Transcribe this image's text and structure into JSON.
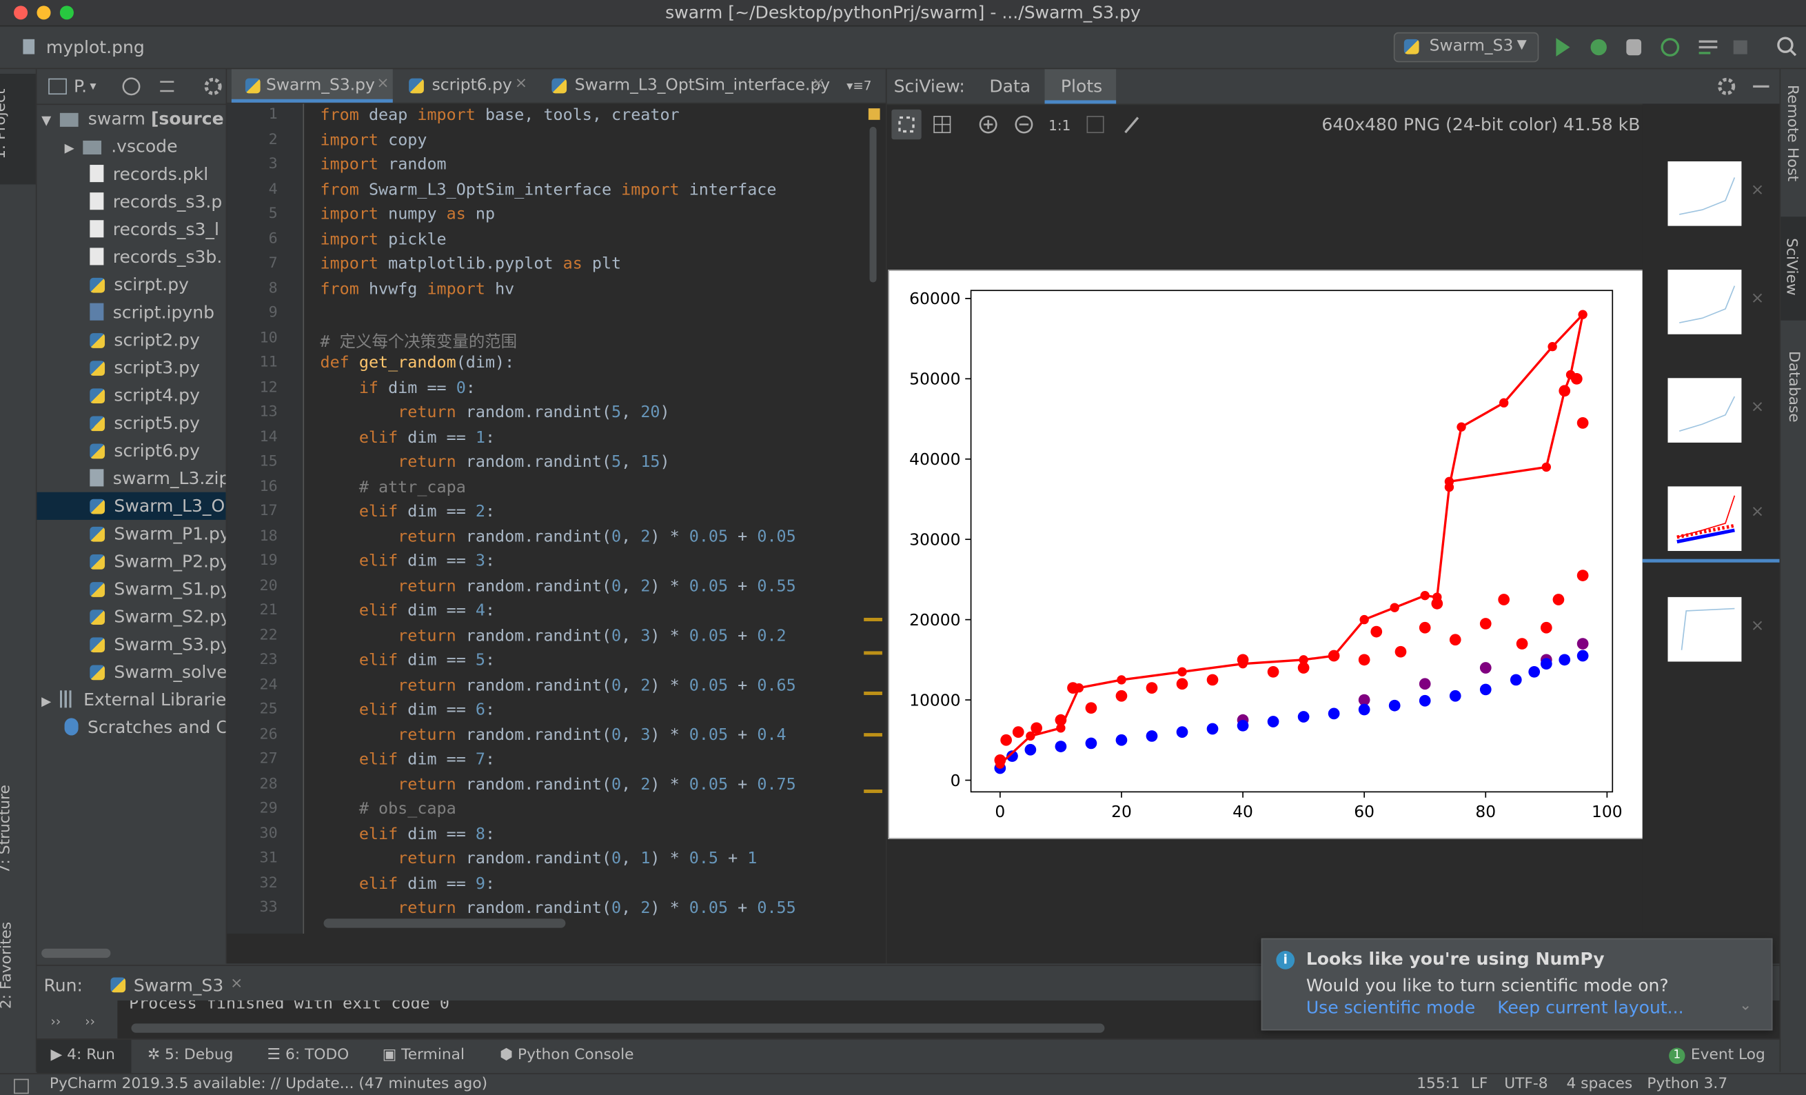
{
  "window": {
    "title": "swarm [~/Desktop/pythonPrj/swarm] - .../Swarm_S3.py"
  },
  "navbar": {
    "file": "myplot.png",
    "run_config": "Swarm_S3"
  },
  "left_strip": [
    "1: Project",
    "7: Structure",
    "2: Favorites"
  ],
  "right_strip": [
    "Remote Host",
    "SciView",
    "Database"
  ],
  "project": {
    "header": "P.",
    "root": "swarm",
    "root_suffix": "[source",
    "items": [
      ".vscode",
      "records.pkl",
      "records_s3.p",
      "records_s3_l",
      "records_s3b.",
      "scirpt.py",
      "script.ipynb",
      "script2.py",
      "script3.py",
      "script4.py",
      "script5.py",
      "script6.py",
      "swarm_L3.zip",
      "Swarm_L3_O",
      "Swarm_P1.py",
      "Swarm_P2.py",
      "Swarm_S1.py",
      "Swarm_S2.py",
      "Swarm_S3.py",
      "Swarm_solve",
      "External Librarie",
      "Scratches and C"
    ]
  },
  "editor": {
    "tabs": [
      "Swarm_S3.py",
      "script6.py",
      "Swarm_L3_OptSim_interface.py"
    ],
    "hidden_tabs": "7",
    "lines": [
      {
        "no": 1,
        "segs": [
          {
            "t": "from",
            "c": "#cc7832"
          },
          {
            "t": " deap "
          },
          {
            "t": "import",
            "c": "#cc7832"
          },
          {
            "t": " base, tools, creator"
          }
        ]
      },
      {
        "no": 2,
        "segs": [
          {
            "t": "import",
            "c": "#cc7832"
          },
          {
            "t": " copy"
          }
        ]
      },
      {
        "no": 3,
        "segs": [
          {
            "t": "import",
            "c": "#cc7832"
          },
          {
            "t": " random"
          }
        ]
      },
      {
        "no": 4,
        "segs": [
          {
            "t": "from",
            "c": "#cc7832"
          },
          {
            "t": " Swarm_L3_OptSim_interface "
          },
          {
            "t": "import",
            "c": "#cc7832"
          },
          {
            "t": " interface"
          }
        ]
      },
      {
        "no": 5,
        "segs": [
          {
            "t": "import",
            "c": "#cc7832"
          },
          {
            "t": " numpy "
          },
          {
            "t": "as",
            "c": "#cc7832"
          },
          {
            "t": " np"
          }
        ]
      },
      {
        "no": 6,
        "segs": [
          {
            "t": "import",
            "c": "#cc7832"
          },
          {
            "t": " pickle"
          }
        ]
      },
      {
        "no": 7,
        "segs": [
          {
            "t": "import",
            "c": "#cc7832"
          },
          {
            "t": " matplotlib.pyplot "
          },
          {
            "t": "as",
            "c": "#cc7832"
          },
          {
            "t": " plt"
          }
        ]
      },
      {
        "no": 8,
        "segs": [
          {
            "t": "from",
            "c": "#cc7832"
          },
          {
            "t": " hvwfg "
          },
          {
            "t": "import",
            "c": "#cc7832"
          },
          {
            "t": " hv"
          }
        ]
      },
      {
        "no": 9,
        "segs": []
      },
      {
        "no": 10,
        "segs": [
          {
            "t": "# 定义每个决策变量的范围",
            "c": "#808080"
          }
        ]
      },
      {
        "no": 11,
        "segs": [
          {
            "t": "def ",
            "c": "#cc7832"
          },
          {
            "t": "get_random",
            "c": "#ffc66d"
          },
          {
            "t": "(dim):"
          }
        ]
      },
      {
        "no": 12,
        "segs": [
          {
            "t": "    if",
            "c": "#cc7832"
          },
          {
            "t": " dim == "
          },
          {
            "t": "0",
            "c": "#6897bb"
          },
          {
            "t": ":"
          }
        ]
      },
      {
        "no": 13,
        "segs": [
          {
            "t": "        return",
            "c": "#cc7832"
          },
          {
            "t": " random.randint("
          },
          {
            "t": "5",
            "c": "#6897bb"
          },
          {
            "t": ", "
          },
          {
            "t": "20",
            "c": "#6897bb"
          },
          {
            "t": ")"
          }
        ]
      },
      {
        "no": 14,
        "segs": [
          {
            "t": "    elif",
            "c": "#cc7832"
          },
          {
            "t": " dim == "
          },
          {
            "t": "1",
            "c": "#6897bb"
          },
          {
            "t": ":"
          }
        ]
      },
      {
        "no": 15,
        "segs": [
          {
            "t": "        return",
            "c": "#cc7832"
          },
          {
            "t": " random.randint("
          },
          {
            "t": "5",
            "c": "#6897bb"
          },
          {
            "t": ", "
          },
          {
            "t": "15",
            "c": "#6897bb"
          },
          {
            "t": ")"
          }
        ]
      },
      {
        "no": 16,
        "segs": [
          {
            "t": "    # attr_capa",
            "c": "#808080"
          }
        ]
      },
      {
        "no": 17,
        "segs": [
          {
            "t": "    elif",
            "c": "#cc7832"
          },
          {
            "t": " dim == "
          },
          {
            "t": "2",
            "c": "#6897bb"
          },
          {
            "t": ":"
          }
        ]
      },
      {
        "no": 18,
        "segs": [
          {
            "t": "        return",
            "c": "#cc7832"
          },
          {
            "t": " random.randint("
          },
          {
            "t": "0",
            "c": "#6897bb"
          },
          {
            "t": ", "
          },
          {
            "t": "2",
            "c": "#6897bb"
          },
          {
            "t": ") * "
          },
          {
            "t": "0.05",
            "c": "#6897bb"
          },
          {
            "t": " + "
          },
          {
            "t": "0.05",
            "c": "#6897bb"
          }
        ]
      },
      {
        "no": 19,
        "segs": [
          {
            "t": "    elif",
            "c": "#cc7832"
          },
          {
            "t": " dim == "
          },
          {
            "t": "3",
            "c": "#6897bb"
          },
          {
            "t": ":"
          }
        ]
      },
      {
        "no": 20,
        "segs": [
          {
            "t": "        return",
            "c": "#cc7832"
          },
          {
            "t": " random.randint("
          },
          {
            "t": "0",
            "c": "#6897bb"
          },
          {
            "t": ", "
          },
          {
            "t": "2",
            "c": "#6897bb"
          },
          {
            "t": ") * "
          },
          {
            "t": "0.05",
            "c": "#6897bb"
          },
          {
            "t": " + "
          },
          {
            "t": "0.55",
            "c": "#6897bb"
          }
        ]
      },
      {
        "no": 21,
        "segs": [
          {
            "t": "    elif",
            "c": "#cc7832"
          },
          {
            "t": " dim == "
          },
          {
            "t": "4",
            "c": "#6897bb"
          },
          {
            "t": ":"
          }
        ]
      },
      {
        "no": 22,
        "segs": [
          {
            "t": "        return",
            "c": "#cc7832"
          },
          {
            "t": " random.randint("
          },
          {
            "t": "0",
            "c": "#6897bb"
          },
          {
            "t": ", "
          },
          {
            "t": "3",
            "c": "#6897bb"
          },
          {
            "t": ") * "
          },
          {
            "t": "0.05",
            "c": "#6897bb"
          },
          {
            "t": " + "
          },
          {
            "t": "0.2",
            "c": "#6897bb"
          }
        ]
      },
      {
        "no": 23,
        "segs": [
          {
            "t": "    elif",
            "c": "#cc7832"
          },
          {
            "t": " dim == "
          },
          {
            "t": "5",
            "c": "#6897bb"
          },
          {
            "t": ":"
          }
        ]
      },
      {
        "no": 24,
        "segs": [
          {
            "t": "        return",
            "c": "#cc7832"
          },
          {
            "t": " random.randint("
          },
          {
            "t": "0",
            "c": "#6897bb"
          },
          {
            "t": ", "
          },
          {
            "t": "2",
            "c": "#6897bb"
          },
          {
            "t": ") * "
          },
          {
            "t": "0.05",
            "c": "#6897bb"
          },
          {
            "t": " + "
          },
          {
            "t": "0.65",
            "c": "#6897bb"
          }
        ]
      },
      {
        "no": 25,
        "segs": [
          {
            "t": "    elif",
            "c": "#cc7832"
          },
          {
            "t": " dim == "
          },
          {
            "t": "6",
            "c": "#6897bb"
          },
          {
            "t": ":"
          }
        ]
      },
      {
        "no": 26,
        "segs": [
          {
            "t": "        return",
            "c": "#cc7832"
          },
          {
            "t": " random.randint("
          },
          {
            "t": "0",
            "c": "#6897bb"
          },
          {
            "t": ", "
          },
          {
            "t": "3",
            "c": "#6897bb"
          },
          {
            "t": ") * "
          },
          {
            "t": "0.05",
            "c": "#6897bb"
          },
          {
            "t": " + "
          },
          {
            "t": "0.4",
            "c": "#6897bb"
          }
        ]
      },
      {
        "no": 27,
        "segs": [
          {
            "t": "    elif",
            "c": "#cc7832"
          },
          {
            "t": " dim == "
          },
          {
            "t": "7",
            "c": "#6897bb"
          },
          {
            "t": ":"
          }
        ]
      },
      {
        "no": 28,
        "segs": [
          {
            "t": "        return",
            "c": "#cc7832"
          },
          {
            "t": " random.randint("
          },
          {
            "t": "0",
            "c": "#6897bb"
          },
          {
            "t": ", "
          },
          {
            "t": "2",
            "c": "#6897bb"
          },
          {
            "t": ") * "
          },
          {
            "t": "0.05",
            "c": "#6897bb"
          },
          {
            "t": " + "
          },
          {
            "t": "0.75",
            "c": "#6897bb"
          }
        ]
      },
      {
        "no": 29,
        "segs": [
          {
            "t": "    # obs_capa",
            "c": "#808080"
          }
        ]
      },
      {
        "no": 30,
        "segs": [
          {
            "t": "    elif",
            "c": "#cc7832"
          },
          {
            "t": " dim == "
          },
          {
            "t": "8",
            "c": "#6897bb"
          },
          {
            "t": ":"
          }
        ]
      },
      {
        "no": 31,
        "segs": [
          {
            "t": "        return",
            "c": "#cc7832"
          },
          {
            "t": " random.randint("
          },
          {
            "t": "0",
            "c": "#6897bb"
          },
          {
            "t": ", "
          },
          {
            "t": "1",
            "c": "#6897bb"
          },
          {
            "t": ") * "
          },
          {
            "t": "0.5",
            "c": "#6897bb"
          },
          {
            "t": " + "
          },
          {
            "t": "1",
            "c": "#6897bb"
          }
        ]
      },
      {
        "no": 32,
        "segs": [
          {
            "t": "    elif",
            "c": "#cc7832"
          },
          {
            "t": " dim == "
          },
          {
            "t": "9",
            "c": "#6897bb"
          },
          {
            "t": ":"
          }
        ]
      },
      {
        "no": 33,
        "segs": [
          {
            "t": "        return",
            "c": "#cc7832"
          },
          {
            "t": " random.randint("
          },
          {
            "t": "0",
            "c": "#6897bb"
          },
          {
            "t": ", "
          },
          {
            "t": "2",
            "c": "#6897bb"
          },
          {
            "t": ") * "
          },
          {
            "t": "0.05",
            "c": "#6897bb"
          },
          {
            "t": " + "
          },
          {
            "t": "0.55",
            "c": "#6897bb"
          }
        ]
      }
    ]
  },
  "sciview": {
    "label": "SciView:",
    "tabs": [
      "Data",
      "Plots"
    ],
    "zoom": "1:1",
    "image_info": "640x480 PNG (24-bit color) 41.58 kB"
  },
  "chart_data": {
    "type": "scatter",
    "xlim": [
      -4.8,
      100.9
    ],
    "ylim": [
      -1450,
      61000
    ],
    "xticks": [
      0,
      20,
      40,
      60,
      80,
      100
    ],
    "yticks": [
      0,
      10000,
      20000,
      30000,
      40000,
      50000,
      60000
    ],
    "series": [
      {
        "color": "#ff0000",
        "x": [
          0,
          1,
          3,
          6,
          10,
          12,
          15,
          20,
          25,
          30,
          35,
          40,
          45,
          50,
          55,
          60,
          62,
          66,
          70,
          72,
          75,
          80,
          83,
          86,
          90,
          92,
          96,
          96,
          95,
          93
        ],
        "values": [
          2500,
          5000,
          6000,
          6500,
          7500,
          11500,
          9000,
          10500,
          11500,
          12000,
          12500,
          15000,
          13500,
          14000,
          15500,
          15000,
          18500,
          16000,
          19000,
          22000,
          17500,
          19500,
          22500,
          17000,
          19000,
          22500,
          25500,
          44500,
          50000,
          48500
        ]
      },
      {
        "color": "#800080",
        "x": [
          40,
          60,
          70,
          80,
          90,
          96
        ],
        "values": [
          7500,
          10000,
          12000,
          14000,
          15000,
          17000
        ]
      },
      {
        "color": "#0000ff",
        "x": [
          0,
          2,
          5,
          10,
          15,
          20,
          25,
          30,
          35,
          40,
          45,
          50,
          55,
          60,
          65,
          70,
          75,
          80,
          85,
          88,
          90,
          93,
          96
        ],
        "values": [
          1500,
          3000,
          3800,
          4200,
          4600,
          5000,
          5500,
          6000,
          6400,
          6800,
          7300,
          7900,
          8300,
          8800,
          9300,
          9900,
          10500,
          11300,
          12500,
          13500,
          14500,
          15000,
          15500
        ]
      },
      {
        "color": "#ff0000",
        "line": true,
        "x": [
          0,
          5,
          10,
          13,
          20,
          30,
          40,
          50,
          55,
          60,
          65,
          70,
          72,
          74,
          76,
          83,
          91,
          96,
          94,
          93,
          90,
          74
        ],
        "values": [
          2000,
          5500,
          6500,
          11500,
          12500,
          13500,
          14500,
          15000,
          15500,
          20000,
          21500,
          23000,
          22800,
          36500,
          44000,
          47000,
          54000,
          58000,
          50500,
          48500,
          39000,
          37200
        ]
      }
    ]
  },
  "notification": {
    "title": "Looks like you're using NumPy",
    "body": "Would you like to turn scientific mode on?",
    "actions": [
      "Use scientific mode",
      "Keep current layout..."
    ]
  },
  "run": {
    "label": "Run:",
    "tab": "Swarm_S3",
    "output": "Process finished with exit code 0"
  },
  "toolwindows": [
    "4: Run",
    "5: Debug",
    "6: TODO",
    "Terminal",
    "Python Console",
    "Event Log"
  ],
  "status": {
    "message": "PyCharm 2019.3.5 available: // Update... (47 minutes ago)",
    "items": [
      "155:1",
      "LF",
      "UTF-8",
      "4 spaces",
      "Python 3.7"
    ]
  }
}
